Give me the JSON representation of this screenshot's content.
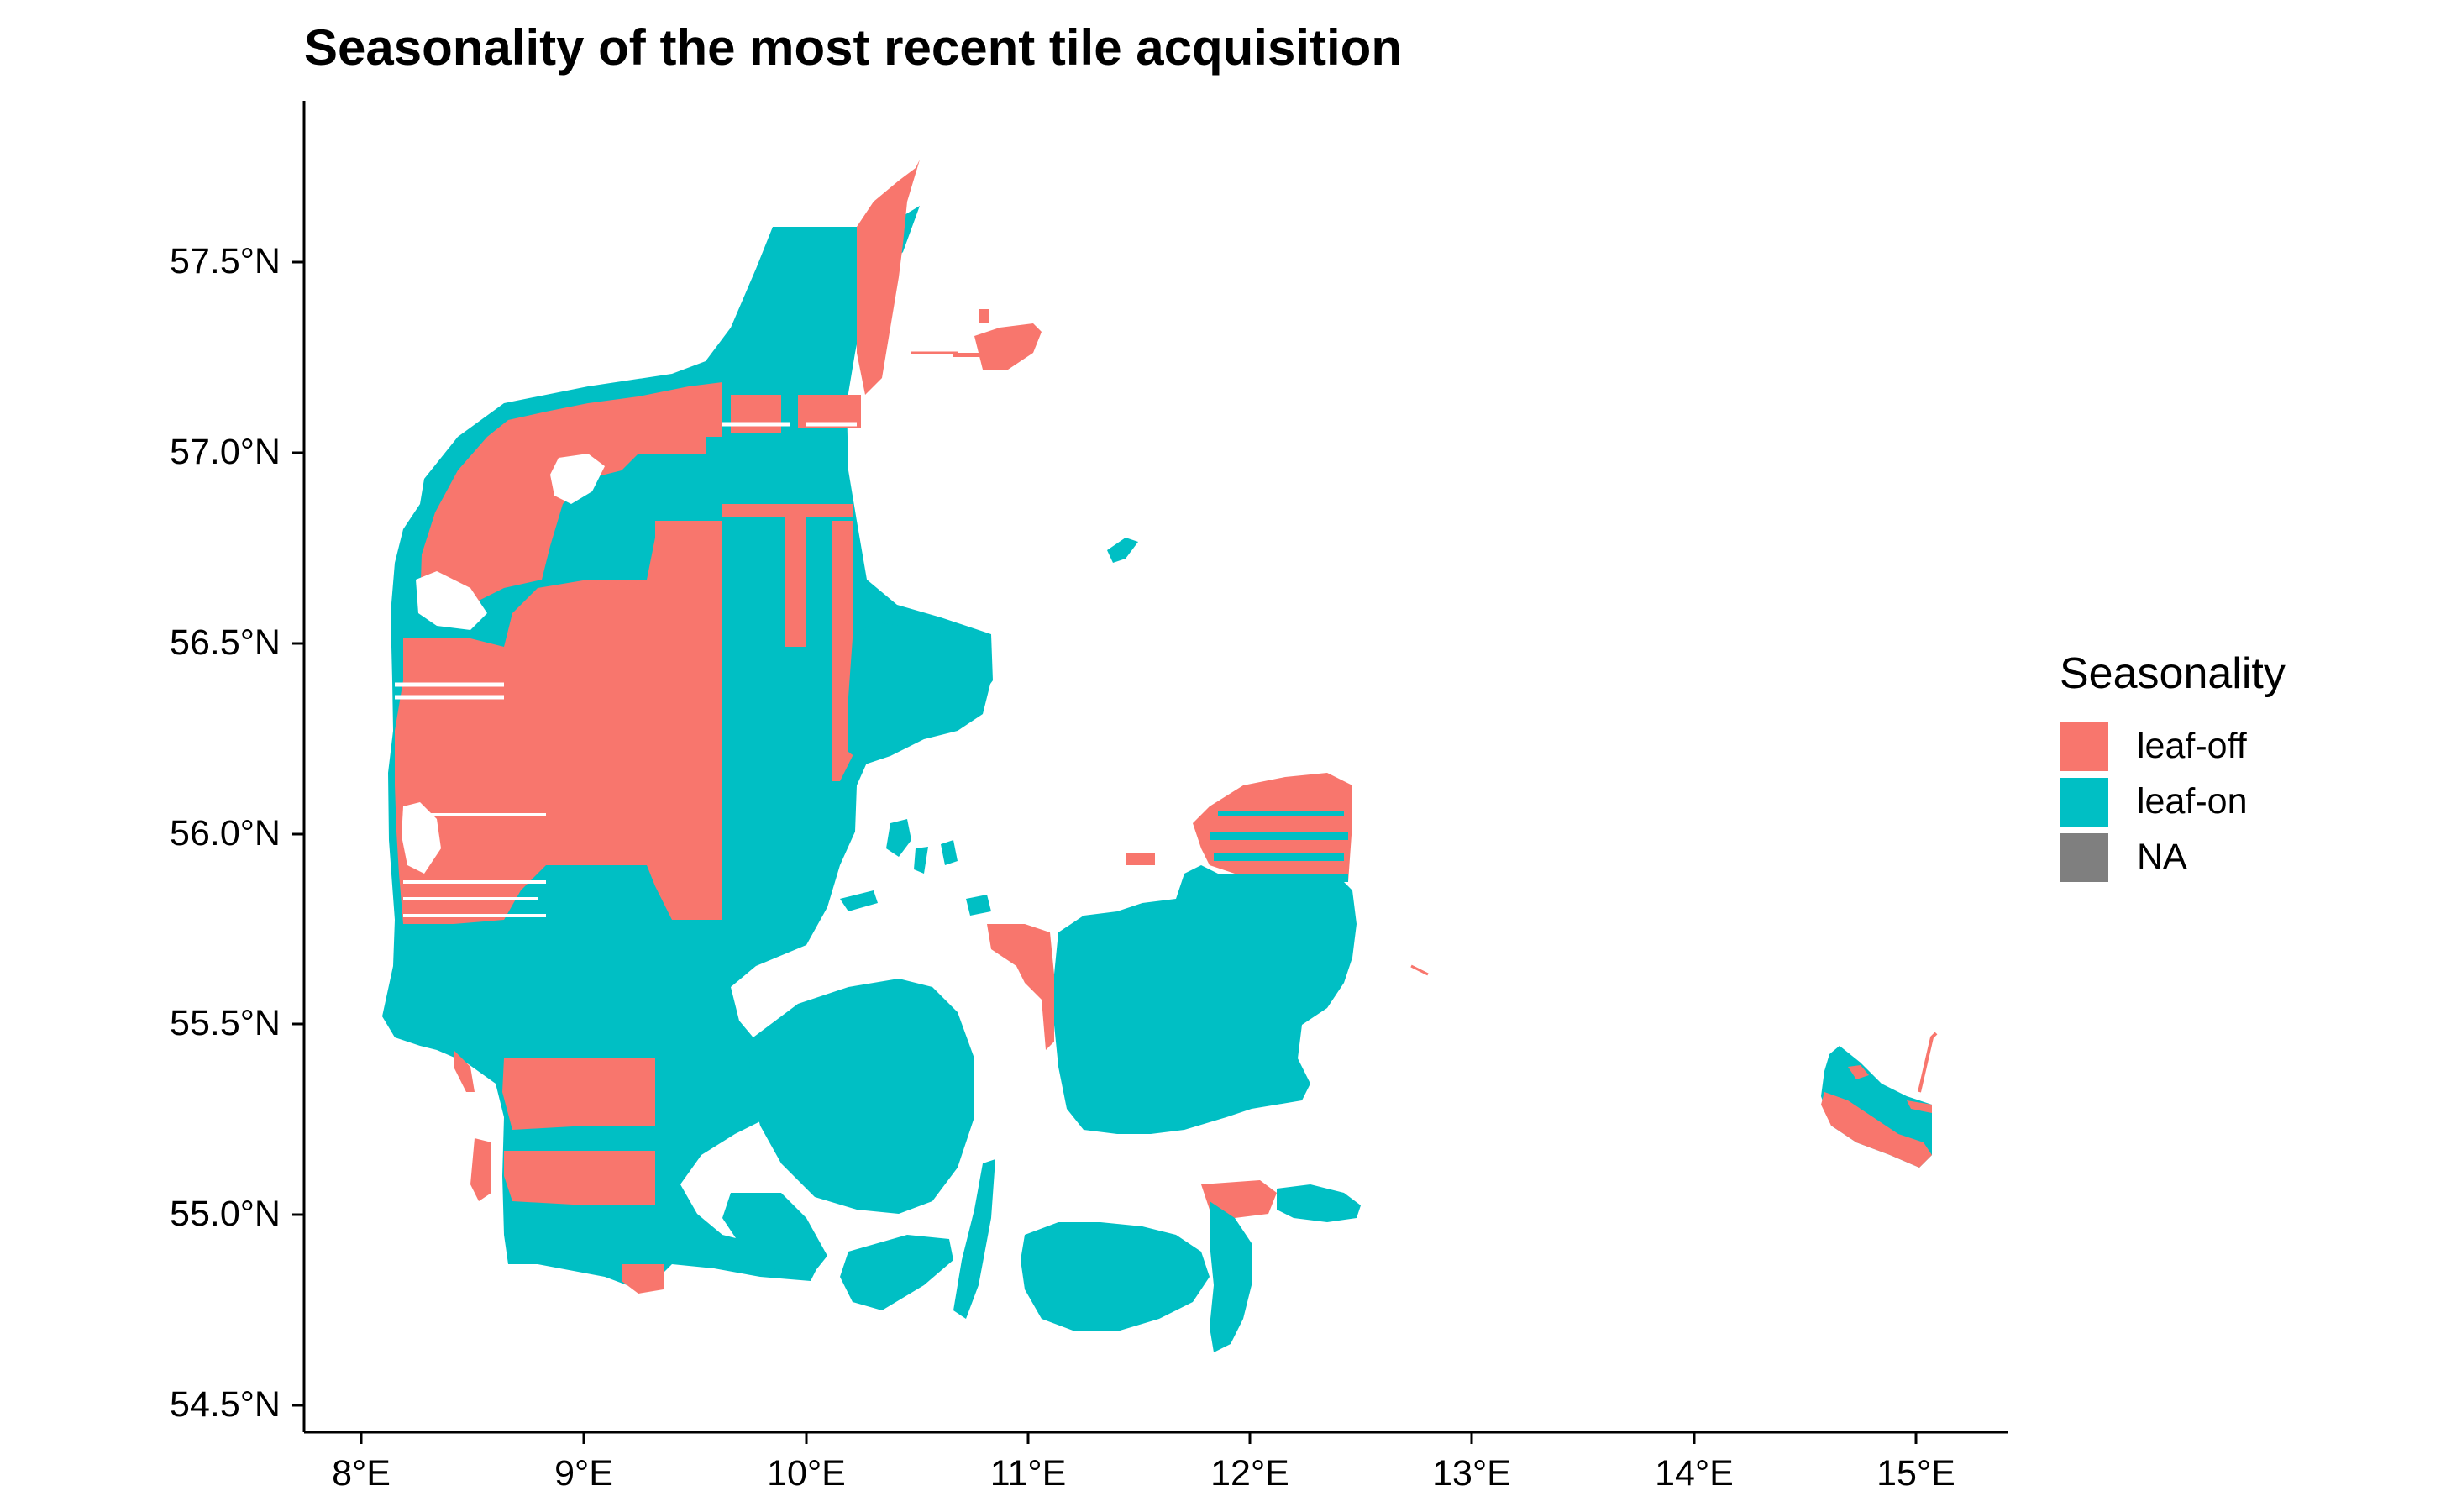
{
  "title": "Seasonality of the most recent tile acquisition",
  "legend": {
    "title": "Seasonality",
    "items": [
      {
        "label": "leaf-off",
        "color": "#F8766D"
      },
      {
        "label": "leaf-on",
        "color": "#00BFC4"
      },
      {
        "label": "NA",
        "color": "#7F7F7F"
      }
    ]
  },
  "axes": {
    "y_ticks": [
      "57.5°N",
      "57.0°N",
      "56.5°N",
      "56.0°N",
      "55.5°N",
      "55.0°N",
      "54.5°N"
    ],
    "x_ticks": [
      "8°E",
      "9°E",
      "10°E",
      "11°E",
      "12°E",
      "13°E",
      "14°E",
      "15°E"
    ],
    "lon_range": [
      7.7,
      15.4
    ],
    "lat_range": [
      54.4,
      57.9
    ]
  },
  "colors": {
    "leaf_off": "#F8766D",
    "leaf_on": "#00BFC4",
    "na": "#7F7F7F"
  }
}
